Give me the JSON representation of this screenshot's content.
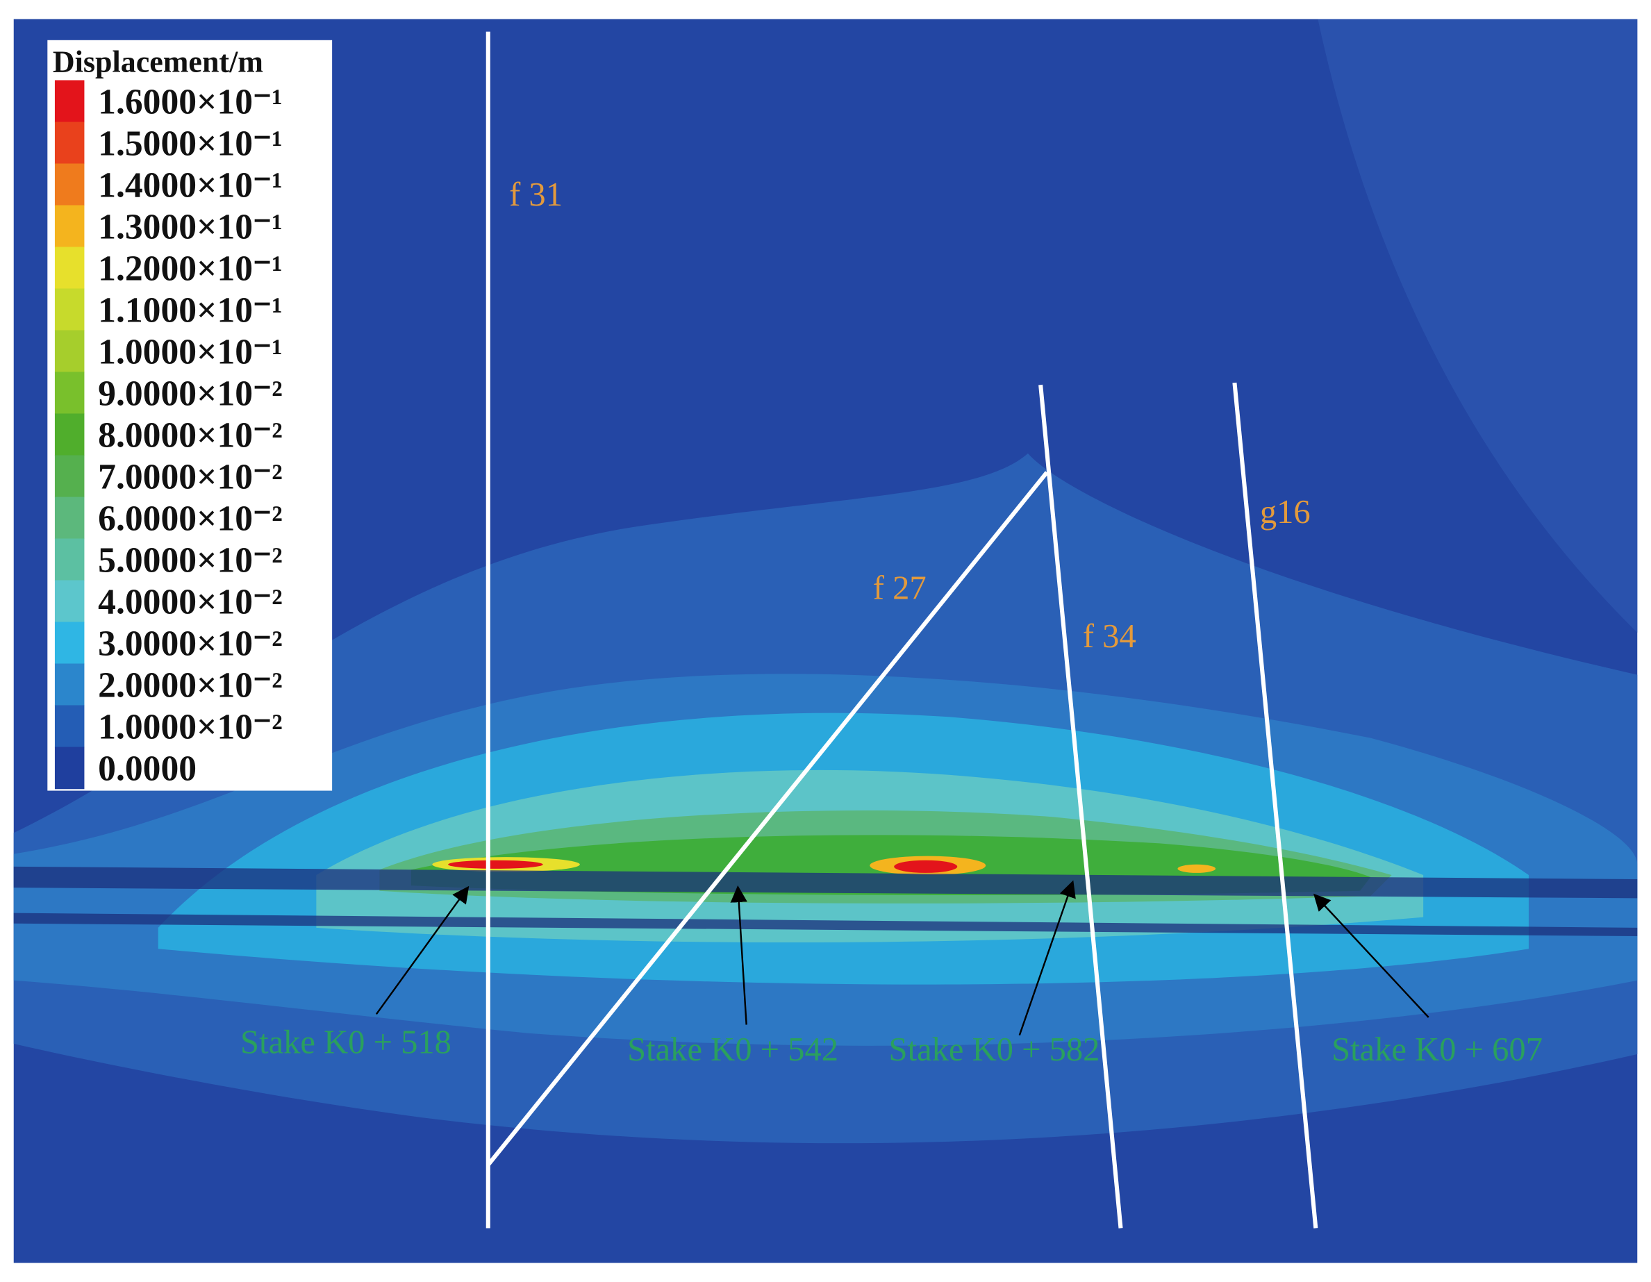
{
  "legend": {
    "title": "Displacement/m",
    "levels": [
      {
        "label": "1.6000×10⁻¹",
        "color": "#e3141b"
      },
      {
        "label": "1.5000×10⁻¹",
        "color": "#e9411c"
      },
      {
        "label": "1.4000×10⁻¹",
        "color": "#ef7b1d"
      },
      {
        "label": "1.3000×10⁻¹",
        "color": "#f4b41e"
      },
      {
        "label": "1.2000×10⁻¹",
        "color": "#e7e02c"
      },
      {
        "label": "1.1000×10⁻¹",
        "color": "#c7da2c"
      },
      {
        "label": "1.0000×10⁻¹",
        "color": "#a6ce2c"
      },
      {
        "label": "9.0000×10⁻²",
        "color": "#79c02c"
      },
      {
        "label": "8.0000×10⁻²",
        "color": "#50ae2c"
      },
      {
        "label": "7.0000×10⁻²",
        "color": "#55b04e"
      },
      {
        "label": "6.0000×10⁻²",
        "color": "#5cb87c"
      },
      {
        "label": "5.0000×10⁻²",
        "color": "#5cc0a2"
      },
      {
        "label": "4.0000×10⁻²",
        "color": "#5cc6cc"
      },
      {
        "label": "3.0000×10⁻²",
        "color": "#2fb6e4"
      },
      {
        "label": "2.0000×10⁻²",
        "color": "#2b86cc"
      },
      {
        "label": "1.0000×10⁻²",
        "color": "#245db5"
      },
      {
        "label": "0.0000",
        "color": "#1f3f9e"
      }
    ]
  },
  "faults": [
    "f 31",
    "f 27",
    "f 34",
    "g16"
  ],
  "stakes": [
    "Stake K0 + 518",
    "Stake K0 + 542",
    "Stake K0 + 582",
    "Stake K0 + 607"
  ]
}
